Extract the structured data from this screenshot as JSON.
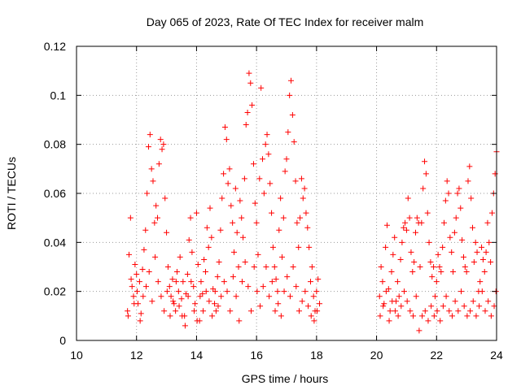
{
  "chart_data": {
    "type": "scatter",
    "title": "Day 065 of 2023, Rate Of TEC Index for receiver malm",
    "xlabel": "GPS time / hours",
    "ylabel": "ROTI / TECUs",
    "xlim": [
      10,
      24
    ],
    "ylim": [
      0,
      0.12
    ],
    "xticks": [
      "10",
      "12",
      "14",
      "16",
      "18",
      "20",
      "22",
      "24"
    ],
    "yticks": [
      "0",
      "0.02",
      "0.04",
      "0.06",
      "0.08",
      "0.1",
      "0.12"
    ],
    "grid": true,
    "marker": "+",
    "color": "#ff0000",
    "series": [
      {
        "points": [
          [
            11.7,
            0.012
          ],
          [
            11.75,
            0.035
          ],
          [
            11.8,
            0.05
          ],
          [
            11.85,
            0.022
          ],
          [
            11.9,
            0.018
          ],
          [
            11.95,
            0.031
          ],
          [
            12.0,
            0.027
          ],
          [
            12.05,
            0.015
          ],
          [
            12.1,
            0.024
          ],
          [
            12.15,
            0.011
          ],
          [
            12.2,
            0.029
          ],
          [
            12.25,
            0.037
          ],
          [
            12.3,
            0.045
          ],
          [
            12.35,
            0.06
          ],
          [
            12.4,
            0.079
          ],
          [
            12.45,
            0.084
          ],
          [
            12.5,
            0.07
          ],
          [
            12.55,
            0.065
          ],
          [
            12.6,
            0.048
          ],
          [
            12.65,
            0.055
          ],
          [
            12.7,
            0.05
          ],
          [
            12.75,
            0.072
          ],
          [
            12.8,
            0.082
          ],
          [
            12.85,
            0.078
          ],
          [
            12.9,
            0.08
          ],
          [
            12.95,
            0.058
          ],
          [
            13.0,
            0.044
          ],
          [
            13.05,
            0.03
          ],
          [
            13.1,
            0.022
          ],
          [
            13.15,
            0.018
          ],
          [
            13.2,
            0.025
          ],
          [
            13.25,
            0.015
          ],
          [
            13.3,
            0.012
          ],
          [
            13.35,
            0.028
          ],
          [
            13.4,
            0.02
          ],
          [
            13.45,
            0.034
          ],
          [
            13.5,
            0.017
          ],
          [
            13.55,
            0.024
          ],
          [
            13.6,
            0.01
          ],
          [
            13.65,
            0.019
          ],
          [
            13.7,
            0.027
          ],
          [
            13.75,
            0.041
          ],
          [
            13.8,
            0.05
          ],
          [
            13.85,
            0.036
          ],
          [
            13.9,
            0.022
          ],
          [
            13.95,
            0.015
          ],
          [
            14.0,
            0.052
          ],
          [
            14.05,
            0.031
          ],
          [
            14.1,
            0.008
          ],
          [
            14.15,
            0.024
          ],
          [
            14.2,
            0.019
          ],
          [
            14.25,
            0.033
          ],
          [
            14.3,
            0.028
          ],
          [
            14.35,
            0.046
          ],
          [
            14.4,
            0.038
          ],
          [
            14.45,
            0.054
          ],
          [
            14.5,
            0.042
          ],
          [
            14.55,
            0.021
          ],
          [
            14.6,
            0.015
          ],
          [
            14.65,
            0.012
          ],
          [
            14.7,
            0.026
          ],
          [
            14.75,
            0.032
          ],
          [
            14.8,
            0.045
          ],
          [
            14.85,
            0.058
          ],
          [
            14.9,
            0.068
          ],
          [
            14.95,
            0.087
          ],
          [
            15.0,
            0.082
          ],
          [
            15.05,
            0.064
          ],
          [
            15.1,
            0.07
          ],
          [
            15.15,
            0.055
          ],
          [
            15.2,
            0.048
          ],
          [
            15.25,
            0.036
          ],
          [
            15.3,
            0.062
          ],
          [
            15.35,
            0.044
          ],
          [
            15.4,
            0.03
          ],
          [
            15.45,
            0.057
          ],
          [
            15.5,
            0.05
          ],
          [
            15.55,
            0.042
          ],
          [
            15.6,
            0.066
          ],
          [
            15.65,
            0.088
          ],
          [
            15.7,
            0.093
          ],
          [
            15.75,
            0.109
          ],
          [
            15.8,
            0.105
          ],
          [
            15.85,
            0.096
          ],
          [
            15.9,
            0.072
          ],
          [
            15.95,
            0.056
          ],
          [
            16.0,
            0.048
          ],
          [
            16.05,
            0.035
          ],
          [
            16.1,
            0.066
          ],
          [
            16.15,
            0.103
          ],
          [
            16.2,
            0.074
          ],
          [
            16.25,
            0.06
          ],
          [
            16.3,
            0.08
          ],
          [
            16.35,
            0.084
          ],
          [
            16.4,
            0.076
          ],
          [
            16.45,
            0.064
          ],
          [
            16.5,
            0.052
          ],
          [
            16.55,
            0.038
          ],
          [
            16.6,
            0.03
          ],
          [
            16.65,
            0.025
          ],
          [
            16.7,
            0.02
          ],
          [
            16.75,
            0.045
          ],
          [
            16.8,
            0.058
          ],
          [
            16.85,
            0.034
          ],
          [
            16.9,
            0.05
          ],
          [
            16.95,
            0.069
          ],
          [
            17.0,
            0.074
          ],
          [
            17.05,
            0.085
          ],
          [
            17.1,
            0.1
          ],
          [
            17.15,
            0.106
          ],
          [
            17.2,
            0.092
          ],
          [
            17.25,
            0.081
          ],
          [
            17.3,
            0.065
          ],
          [
            17.35,
            0.048
          ],
          [
            17.4,
            0.038
          ],
          [
            17.45,
            0.05
          ],
          [
            17.5,
            0.066
          ],
          [
            17.55,
            0.058
          ],
          [
            17.6,
            0.062
          ],
          [
            17.65,
            0.052
          ],
          [
            17.7,
            0.046
          ],
          [
            17.75,
            0.038
          ],
          [
            17.8,
            0.024
          ],
          [
            17.85,
            0.03
          ],
          [
            17.9,
            0.018
          ],
          [
            17.95,
            0.012
          ],
          [
            18.0,
            0.02
          ],
          [
            18.05,
            0.025
          ],
          [
            18.1,
            0.015
          ],
          [
            20.1,
            0.018
          ],
          [
            20.15,
            0.03
          ],
          [
            20.2,
            0.024
          ],
          [
            20.25,
            0.015
          ],
          [
            20.3,
            0.038
          ],
          [
            20.35,
            0.047
          ],
          [
            20.4,
            0.021
          ],
          [
            20.45,
            0.012
          ],
          [
            20.5,
            0.028
          ],
          [
            20.55,
            0.035
          ],
          [
            20.6,
            0.042
          ],
          [
            20.65,
            0.016
          ],
          [
            20.7,
            0.024
          ],
          [
            20.75,
            0.018
          ],
          [
            20.8,
            0.033
          ],
          [
            20.85,
            0.04
          ],
          [
            20.9,
            0.046
          ],
          [
            20.95,
            0.048
          ],
          [
            21.0,
            0.045
          ],
          [
            21.05,
            0.058
          ],
          [
            21.1,
            0.05
          ],
          [
            21.15,
            0.036
          ],
          [
            21.2,
            0.028
          ],
          [
            21.25,
            0.032
          ],
          [
            21.3,
            0.044
          ],
          [
            21.35,
            0.05
          ],
          [
            21.4,
            0.048
          ],
          [
            21.45,
            0.03
          ],
          [
            21.5,
            0.048
          ],
          [
            21.55,
            0.062
          ],
          [
            21.6,
            0.073
          ],
          [
            21.65,
            0.068
          ],
          [
            21.7,
            0.052
          ],
          [
            21.75,
            0.04
          ],
          [
            21.8,
            0.032
          ],
          [
            21.85,
            0.026
          ],
          [
            21.9,
            0.03
          ],
          [
            21.95,
            0.018
          ],
          [
            22.0,
            0.024
          ],
          [
            22.05,
            0.035
          ],
          [
            22.1,
            0.03
          ],
          [
            22.15,
            0.028
          ],
          [
            22.2,
            0.038
          ],
          [
            22.25,
            0.048
          ],
          [
            22.3,
            0.057
          ],
          [
            22.35,
            0.065
          ],
          [
            22.4,
            0.06
          ],
          [
            22.45,
            0.042
          ],
          [
            22.5,
            0.036
          ],
          [
            22.55,
            0.028
          ],
          [
            22.6,
            0.044
          ],
          [
            22.65,
            0.05
          ],
          [
            22.7,
            0.06
          ],
          [
            22.75,
            0.062
          ],
          [
            22.8,
            0.054
          ],
          [
            22.85,
            0.041
          ],
          [
            22.9,
            0.034
          ],
          [
            22.95,
            0.03
          ],
          [
            23.0,
            0.028
          ],
          [
            23.05,
            0.065
          ],
          [
            23.1,
            0.071
          ],
          [
            23.15,
            0.058
          ],
          [
            23.2,
            0.046
          ],
          [
            23.25,
            0.032
          ],
          [
            23.3,
            0.04
          ],
          [
            23.35,
            0.036
          ],
          [
            23.4,
            0.02
          ],
          [
            23.45,
            0.024
          ],
          [
            23.5,
            0.038
          ],
          [
            23.55,
            0.033
          ],
          [
            23.6,
            0.028
          ],
          [
            23.65,
            0.036
          ],
          [
            23.7,
            0.048
          ],
          [
            23.75,
            0.04
          ],
          [
            23.8,
            0.032
          ],
          [
            23.85,
            0.052
          ],
          [
            23.9,
            0.06
          ],
          [
            23.95,
            0.068
          ],
          [
            24.0,
            0.077
          ],
          [
            11.72,
            0.01
          ],
          [
            11.82,
            0.025
          ],
          [
            11.92,
            0.015
          ],
          [
            12.02,
            0.02
          ],
          [
            12.12,
            0.008
          ],
          [
            12.22,
            0.018
          ],
          [
            12.32,
            0.022
          ],
          [
            12.42,
            0.028
          ],
          [
            12.52,
            0.016
          ],
          [
            12.62,
            0.034
          ],
          [
            12.72,
            0.024
          ],
          [
            12.82,
            0.018
          ],
          [
            12.92,
            0.012
          ],
          [
            13.02,
            0.02
          ],
          [
            13.12,
            0.01
          ],
          [
            13.22,
            0.016
          ],
          [
            13.32,
            0.024
          ],
          [
            13.42,
            0.014
          ],
          [
            13.52,
            0.01
          ],
          [
            13.62,
            0.006
          ],
          [
            13.72,
            0.018
          ],
          [
            13.82,
            0.024
          ],
          [
            13.92,
            0.012
          ],
          [
            14.02,
            0.008
          ],
          [
            14.12,
            0.018
          ],
          [
            14.22,
            0.012
          ],
          [
            14.32,
            0.02
          ],
          [
            14.42,
            0.016
          ],
          [
            14.52,
            0.01
          ],
          [
            14.62,
            0.02
          ],
          [
            14.72,
            0.014
          ],
          [
            14.82,
            0.018
          ],
          [
            14.92,
            0.024
          ],
          [
            15.02,
            0.02
          ],
          [
            15.12,
            0.012
          ],
          [
            15.22,
            0.026
          ],
          [
            15.32,
            0.018
          ],
          [
            15.42,
            0.008
          ],
          [
            15.52,
            0.024
          ],
          [
            15.62,
            0.032
          ],
          [
            15.72,
            0.022
          ],
          [
            15.82,
            0.012
          ],
          [
            15.92,
            0.03
          ],
          [
            16.02,
            0.02
          ],
          [
            16.12,
            0.014
          ],
          [
            16.22,
            0.022
          ],
          [
            16.32,
            0.03
          ],
          [
            16.42,
            0.018
          ],
          [
            16.52,
            0.024
          ],
          [
            16.62,
            0.012
          ],
          [
            16.72,
            0.015
          ],
          [
            16.82,
            0.01
          ],
          [
            16.92,
            0.02
          ],
          [
            17.02,
            0.026
          ],
          [
            17.12,
            0.018
          ],
          [
            17.22,
            0.03
          ],
          [
            17.32,
            0.022
          ],
          [
            17.42,
            0.012
          ],
          [
            17.52,
            0.016
          ],
          [
            17.62,
            0.02
          ],
          [
            17.72,
            0.014
          ],
          [
            17.82,
            0.01
          ],
          [
            17.92,
            0.008
          ],
          [
            18.02,
            0.012
          ],
          [
            20.12,
            0.01
          ],
          [
            20.22,
            0.014
          ],
          [
            20.32,
            0.02
          ],
          [
            20.42,
            0.008
          ],
          [
            20.52,
            0.016
          ],
          [
            20.62,
            0.012
          ],
          [
            20.72,
            0.01
          ],
          [
            20.82,
            0.014
          ],
          [
            20.92,
            0.02
          ],
          [
            21.02,
            0.016
          ],
          [
            21.12,
            0.012
          ],
          [
            21.22,
            0.01
          ],
          [
            21.32,
            0.018
          ],
          [
            21.42,
            0.004
          ],
          [
            21.52,
            0.01
          ],
          [
            21.62,
            0.012
          ],
          [
            21.72,
            0.008
          ],
          [
            21.82,
            0.014
          ],
          [
            21.92,
            0.01
          ],
          [
            22.02,
            0.012
          ],
          [
            22.12,
            0.008
          ],
          [
            22.22,
            0.014
          ],
          [
            22.32,
            0.018
          ],
          [
            22.42,
            0.012
          ],
          [
            22.52,
            0.01
          ],
          [
            22.62,
            0.016
          ],
          [
            22.72,
            0.012
          ],
          [
            22.82,
            0.02
          ],
          [
            22.92,
            0.014
          ],
          [
            23.02,
            0.01
          ],
          [
            23.12,
            0.012
          ],
          [
            23.22,
            0.016
          ],
          [
            23.32,
            0.01
          ],
          [
            23.42,
            0.014
          ],
          [
            23.52,
            0.02
          ],
          [
            23.62,
            0.012
          ],
          [
            23.72,
            0.016
          ],
          [
            23.82,
            0.01
          ],
          [
            23.92,
            0.014
          ],
          [
            23.98,
            0.02
          ]
        ]
      }
    ]
  }
}
